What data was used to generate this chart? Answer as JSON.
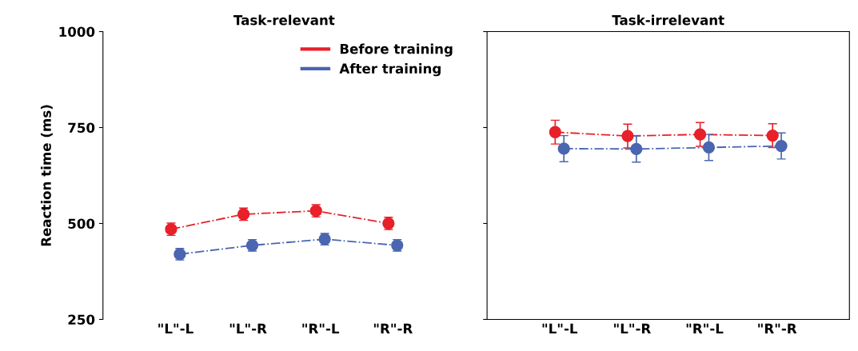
{
  "chart_data": [
    {
      "type": "line",
      "title": "Task-relevant",
      "ylabel": "Reaction time (ms)",
      "categories": [
        "\"L\"-L",
        "\"L\"-R",
        "\"R\"-L",
        "\"R\"-R"
      ],
      "ylim": [
        250,
        1000
      ],
      "yticks": [
        250,
        500,
        750,
        1000
      ],
      "legend": "top right",
      "marker": "circle",
      "line_style": "dashed",
      "grid": false,
      "series": [
        {
          "name": "Before training",
          "color": "#e8202a",
          "values": [
            485,
            524,
            533,
            500
          ],
          "errors": [
            16,
            16,
            16,
            16
          ]
        },
        {
          "name": "After training",
          "color": "#4a66b0",
          "values": [
            420,
            443,
            459,
            443
          ],
          "errors": [
            15,
            15,
            15,
            15
          ]
        }
      ]
    },
    {
      "type": "line",
      "title": "Task-irrelevant",
      "categories": [
        "\"L\"-L",
        "\"L\"-R",
        "\"R\"-L",
        "\"R\"-R"
      ],
      "ylim": [
        250,
        1000
      ],
      "yticks": [
        250,
        500,
        750,
        1000
      ],
      "tick_labels": "x",
      "legend": false,
      "marker": "circle",
      "line_style": "dashed",
      "grid": false,
      "series": [
        {
          "color": "#e8202a",
          "values": [
            738,
            728,
            732,
            729
          ],
          "errors": [
            31,
            31,
            31,
            31
          ]
        },
        {
          "color": "#4a66b0",
          "values": [
            695,
            694,
            698,
            702
          ],
          "errors": [
            34,
            34,
            34,
            34
          ]
        }
      ]
    }
  ]
}
